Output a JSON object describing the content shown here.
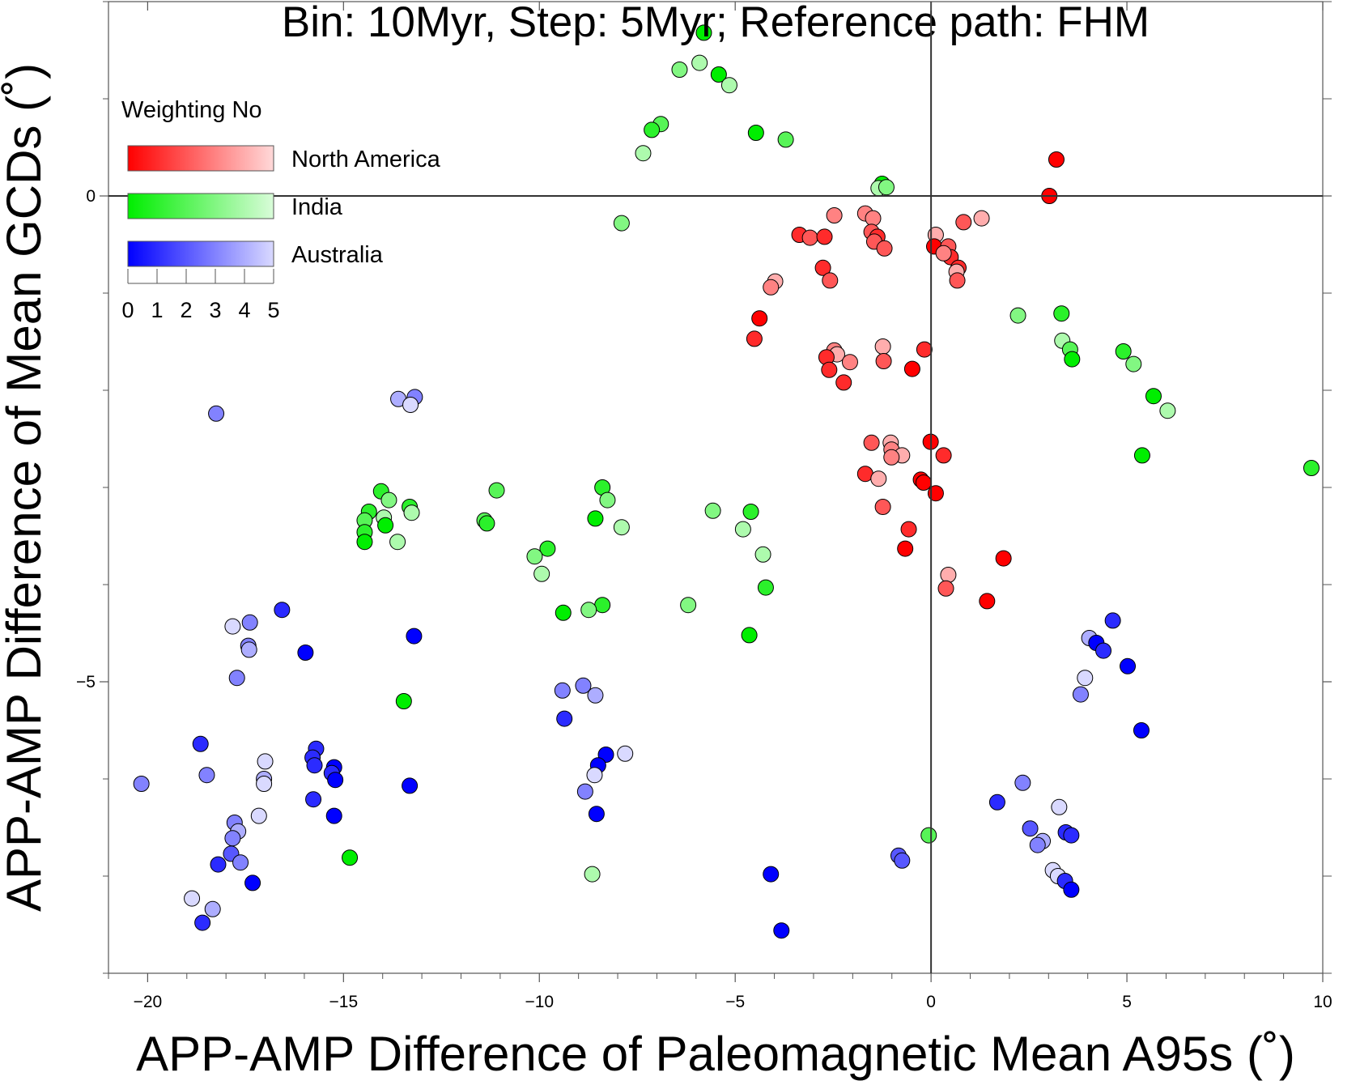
{
  "chart_data": {
    "type": "scatter",
    "title": "Bin: 10Myr, Step: 5Myr; Reference path: FHM",
    "x_label": "APP-AMP Difference of Paleomagnetic Mean A95s (˚)",
    "y_label": "APP-AMP Difference of Mean GCDs (˚)",
    "xlim": [
      -21,
      10
    ],
    "ylim": [
      -8,
      2
    ],
    "xticks": [
      {
        "value": -20,
        "label": "−20"
      },
      {
        "value": -15,
        "label": "−15"
      },
      {
        "value": -10,
        "label": "−10"
      },
      {
        "value": -5,
        "label": "−5"
      },
      0,
      5,
      10
    ],
    "yticks": [
      {
        "value": -5,
        "label": "−5"
      },
      0
    ],
    "xminorticks": [
      -21,
      -19,
      -18,
      -17,
      -16,
      -14,
      -13,
      -12,
      -11,
      -9,
      -8,
      -7,
      -6,
      -4,
      -3,
      -2,
      -1,
      1,
      2,
      3,
      4,
      6,
      7,
      8,
      9
    ],
    "yminorticks": [
      -8,
      -7,
      -6,
      -4,
      -3,
      -2,
      -1,
      1,
      2
    ],
    "colorbar": {
      "title": "Weighting No",
      "range": [
        0,
        5
      ],
      "ticks": [
        0,
        1,
        2,
        3,
        4,
        5
      ]
    },
    "series": [
      {
        "name": "North America",
        "color": "#ff0000",
        "x": [
          3.2,
          3.02,
          1.29,
          0.83,
          0.12,
          0.08,
          0.44,
          0.5,
          0.7,
          0.65,
          0.67,
          0.32,
          -2.47,
          -1.68,
          -1.48,
          -1.52,
          -1.37,
          -1.45,
          -1.19,
          -3.36,
          -3.09,
          -2.72,
          -2.76,
          -2.58,
          -3.98,
          -4.09,
          -4.38,
          -4.51,
          -0.17,
          -1.23,
          -1.21,
          -0.48,
          -2.47,
          -2.4,
          -2.67,
          -2.07,
          -2.6,
          -2.23,
          -0.01,
          0.32,
          -1.52,
          -1.03,
          -1.01,
          -0.74,
          -1.01,
          -1.68,
          -1.34,
          -0.26,
          -0.19,
          0.12,
          -1.23,
          -0.57,
          -0.66,
          1.85,
          0.44,
          0.38,
          1.43
        ],
        "values": [
          0.375,
          0,
          -0.23,
          -0.27,
          -0.4,
          -0.52,
          -0.52,
          -0.63,
          -0.74,
          -0.78,
          -0.87,
          -0.59,
          -0.2,
          -0.18,
          -0.23,
          -0.37,
          -0.42,
          -0.47,
          -0.54,
          -0.4,
          -0.43,
          -0.42,
          -0.74,
          -0.87,
          -0.88,
          -0.94,
          -1.26,
          -1.47,
          -1.58,
          -1.55,
          -1.7,
          -1.78,
          -1.59,
          -1.63,
          -1.66,
          -1.71,
          -1.79,
          -1.92,
          -2.53,
          -2.67,
          -2.54,
          -2.54,
          -2.61,
          -2.67,
          -2.69,
          -2.86,
          -2.91,
          -2.92,
          -2.95,
          -3.06,
          -3.2,
          -3.43,
          -3.63,
          -3.73,
          -3.9,
          -4.04,
          -4.17
        ],
        "weights": [
          0,
          0,
          4,
          2,
          4,
          0,
          2,
          1,
          1,
          4,
          2,
          3,
          3,
          3,
          3,
          2,
          1,
          2,
          2,
          1,
          2,
          1,
          1,
          2,
          4,
          3,
          0,
          1,
          1,
          4,
          2,
          0,
          3,
          4,
          1,
          3,
          1,
          1,
          0,
          1,
          2,
          4,
          3,
          4,
          3,
          1,
          4,
          0,
          0,
          0,
          2,
          1,
          0,
          0,
          4,
          2,
          0
        ]
      },
      {
        "name": "India",
        "color": "#00ee00",
        "x": [
          -5.8,
          -5.91,
          -6.42,
          -5.42,
          -5.15,
          -6.9,
          -7.13,
          -7.35,
          -4.47,
          -3.71,
          -1.25,
          -1.34,
          -1.14,
          -7.9,
          2.22,
          3.33,
          3.35,
          3.55,
          3.6,
          4.91,
          5.17,
          5.68,
          6.04,
          5.39,
          9.71,
          -0.06,
          -14.04,
          -13.84,
          -13.31,
          -13.26,
          -14.35,
          -14.46,
          -13.97,
          -13.93,
          -14.46,
          -14.46,
          -13.62,
          -11.09,
          -11.4,
          -11.34,
          -8.39,
          -8.26,
          -8.57,
          -7.9,
          -9.79,
          -10.12,
          -9.94,
          -5.57,
          -4.6,
          -4.8,
          -4.29,
          -4.22,
          -4.64,
          -6.2,
          -8.39,
          -8.74,
          -9.39,
          -13.46,
          -14.84,
          -8.65
        ],
        "values": [
          1.68,
          1.37,
          1.3,
          1.25,
          1.14,
          0.74,
          0.68,
          0.44,
          0.65,
          0.58,
          0.125,
          0.08,
          0.09,
          -0.28,
          -1.23,
          -1.21,
          -1.49,
          -1.58,
          -1.68,
          -1.6,
          -1.73,
          -2.06,
          -2.21,
          -2.67,
          -2.8,
          -6.58,
          -3.04,
          -3.13,
          -3.2,
          -3.26,
          -3.25,
          -3.34,
          -3.31,
          -3.39,
          -3.46,
          -3.56,
          -3.56,
          -3.03,
          -3.34,
          -3.37,
          -3,
          -3.13,
          -3.32,
          -3.41,
          -3.63,
          -3.71,
          -3.89,
          -3.24,
          -3.25,
          -3.43,
          -3.69,
          -4.03,
          -4.52,
          -4.21,
          -4.21,
          -4.26,
          -4.29,
          -5.2,
          -6.81,
          -6.98
        ],
        "weights": [
          0,
          4,
          3,
          0,
          4,
          2,
          1,
          4,
          0,
          2,
          0,
          4,
          3,
          3,
          3,
          1,
          4,
          2,
          0,
          1,
          3,
          0,
          4,
          0,
          1,
          2,
          1,
          3,
          1,
          4,
          1,
          2,
          4,
          0,
          1,
          0,
          4,
          2,
          2,
          1,
          1,
          3,
          0,
          4,
          1,
          3,
          4,
          3,
          1,
          4,
          4,
          1,
          0,
          3,
          1,
          3,
          0,
          0,
          0,
          4
        ]
      },
      {
        "name": "Australia",
        "color": "#0000ff",
        "x": [
          -18.25,
          -13.6,
          -13.18,
          -13.29,
          -16.57,
          -17.39,
          -17.83,
          -17.43,
          -17.41,
          -17.72,
          -15.97,
          -13.2,
          -20.16,
          -18.65,
          -18.49,
          -17,
          -17.03,
          -17.03,
          -15.7,
          -15.79,
          -15.74,
          -15.24,
          -15.3,
          -15.21,
          -15.77,
          -15.24,
          -13.31,
          -17.16,
          -17.78,
          -17.69,
          -17.83,
          -17.87,
          -17.63,
          -18.2,
          -17.32,
          -18.87,
          -18.34,
          -18.6,
          -9.41,
          -8.88,
          -8.57,
          -9.36,
          -8.3,
          -8.5,
          -8.59,
          -7.81,
          -8.83,
          -8.54,
          -4.09,
          -3.82,
          -0.83,
          -0.74,
          4.64,
          4.04,
          4.22,
          4.4,
          5.02,
          3.93,
          3.82,
          5.37,
          2.34,
          1.69,
          3.27,
          2.53,
          3.44,
          3.58,
          2.85,
          2.72,
          3.11,
          3.24,
          3.42,
          3.58
        ],
        "values": [
          -2.24,
          -2.09,
          -2.07,
          -2.15,
          -4.26,
          -4.39,
          -4.43,
          -4.63,
          -4.67,
          -4.96,
          -4.7,
          -4.53,
          -6.05,
          -5.64,
          -5.96,
          -5.82,
          -6,
          -6.05,
          -5.69,
          -5.78,
          -5.86,
          -5.88,
          -5.94,
          -6.01,
          -6.21,
          -6.38,
          -6.07,
          -6.38,
          -6.45,
          -6.54,
          -6.61,
          -6.77,
          -6.86,
          -6.88,
          -7.07,
          -7.23,
          -7.34,
          -7.48,
          -5.09,
          -5.04,
          -5.14,
          -5.38,
          -5.75,
          -5.86,
          -5.96,
          -5.74,
          -6.13,
          -6.36,
          -6.98,
          -7.56,
          -6.79,
          -6.84,
          -4.37,
          -4.55,
          -4.6,
          -4.68,
          -4.84,
          -4.96,
          -5.13,
          -5.5,
          -6.04,
          -6.24,
          -6.29,
          -6.51,
          -6.55,
          -6.58,
          -6.64,
          -6.68,
          -6.94,
          -7,
          -7.05,
          -7.14
        ],
        "weights": [
          3,
          4,
          3,
          5,
          1,
          3,
          5,
          3,
          4,
          3,
          0,
          0,
          3,
          1,
          3,
          5,
          4,
          5,
          1,
          1,
          1,
          0,
          1,
          0,
          1,
          0,
          0,
          5,
          3,
          4,
          3,
          2,
          3,
          1,
          0,
          5,
          4,
          1,
          3,
          3,
          4,
          1,
          0,
          0,
          5,
          5,
          3,
          0,
          0,
          0,
          2,
          2,
          1,
          4,
          0,
          1,
          0,
          5,
          3,
          0,
          3,
          1,
          5,
          2,
          1,
          1,
          4,
          3,
          5,
          5,
          1,
          0
        ]
      }
    ]
  }
}
